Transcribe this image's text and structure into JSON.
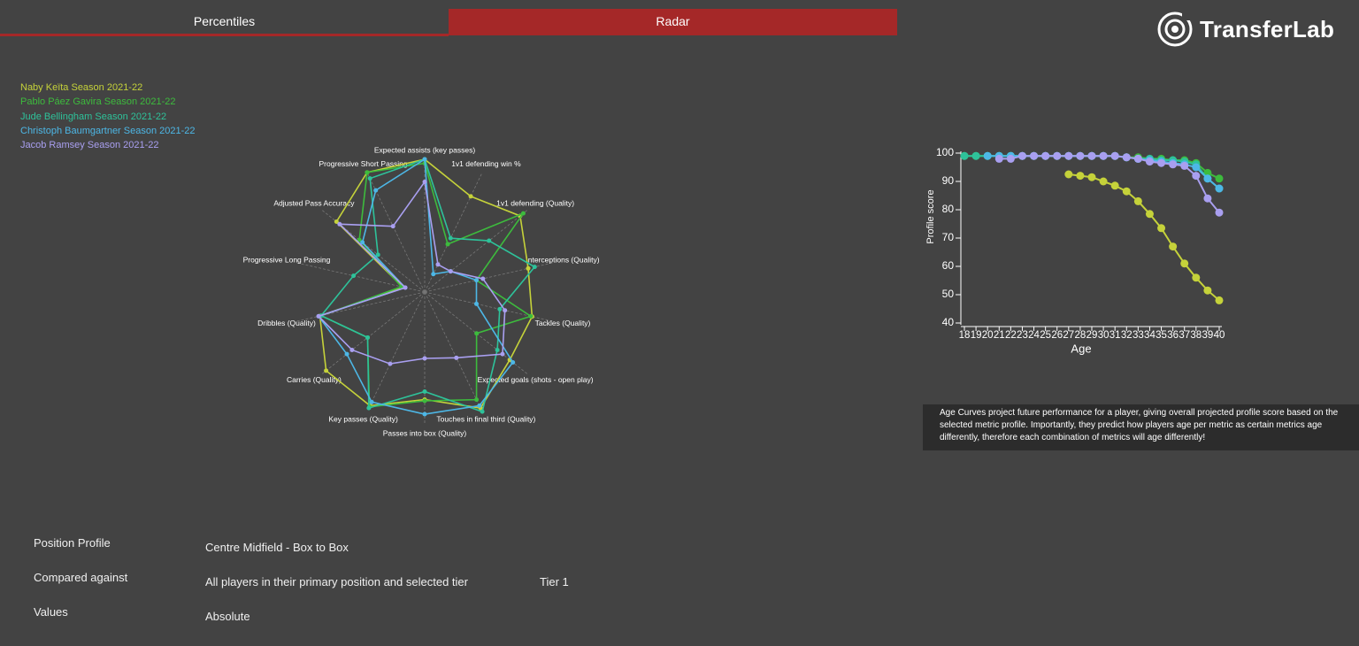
{
  "tabs": [
    "Percentiles",
    "Radar"
  ],
  "active_tab": 1,
  "logo": "TransferLab",
  "chart_data": [
    {
      "type": "radar",
      "categories": [
        "Expected assists (key passes)",
        "1v1 defending win %",
        "1v1 defending (Quality)",
        "Interceptions (Quality)",
        "Tackles (Quality)",
        "Expected goals (shots - open play)",
        "Touches in final third (Quality)",
        "Passes into box (Quality)",
        "Key passes (Quality)",
        "Carries (Quality)",
        "Dribbles (Quality)",
        "Progressive Long Passing",
        "Adjusted Pass Accuracy",
        "Progressive Short Passing"
      ],
      "rlim": [
        0,
        100
      ],
      "series": [
        {
          "name": "Naby Keïta Season 2021-22",
          "color": "#c5d23a",
          "values": [
            100,
            80,
            92,
            80,
            83,
            82,
            97,
            81,
            95,
            95,
            81,
            17,
            85,
            100
          ]
        },
        {
          "name": "Pablo Páez Gavira Season 2021-22",
          "color": "#3dbb3d",
          "values": [
            97,
            40,
            95,
            40,
            82,
            50,
            90,
            82,
            96,
            55,
            80,
            18,
            63,
            100
          ]
        },
        {
          "name": "Jude Bellingham Season 2021-22",
          "color": "#2ec29a",
          "values": [
            100,
            45,
            62,
            85,
            58,
            70,
            100,
            75,
            97,
            55,
            80,
            55,
            45,
            95
          ]
        },
        {
          "name": "Christoph Baumgartner Season 2021-22",
          "color": "#4db7e6",
          "values": [
            100,
            15,
            25,
            40,
            40,
            85,
            95,
            92,
            92,
            75,
            82,
            15,
            60,
            85
          ]
        },
        {
          "name": "Jacob Ramsey Season 2021-22",
          "color": "#a99ff0",
          "values": [
            83,
            23,
            25,
            45,
            62,
            75,
            55,
            50,
            60,
            70,
            82,
            15,
            82,
            55
          ]
        }
      ]
    },
    {
      "type": "line",
      "x_label": "Age",
      "y_label": "Profile score",
      "x": [
        18,
        19,
        20,
        21,
        22,
        23,
        24,
        25,
        26,
        27,
        28,
        29,
        30,
        31,
        32,
        33,
        34,
        35,
        36,
        37,
        38,
        39,
        40
      ],
      "xlim": [
        18,
        40
      ],
      "xticks": [
        18,
        19,
        20,
        21,
        22,
        23,
        24,
        25,
        26,
        27,
        28,
        29,
        30,
        31,
        32,
        33,
        34,
        35,
        36,
        37,
        38,
        39,
        40
      ],
      "ylim": [
        40,
        100
      ],
      "yticks": [
        40,
        50,
        60,
        70,
        80,
        90,
        100
      ],
      "series": [
        {
          "color": "#c5d23a",
          "values": [
            null,
            null,
            null,
            null,
            null,
            null,
            null,
            null,
            null,
            92.5,
            92,
            91.5,
            90,
            88.5,
            86.5,
            83,
            78.5,
            73.5,
            67,
            61,
            56,
            51.5,
            48
          ]
        },
        {
          "color": "#3dbb3d",
          "values": [
            99,
            99,
            99,
            99,
            99,
            99,
            99,
            99,
            99,
            99,
            99,
            99,
            99,
            99,
            98.5,
            98.5,
            98,
            98,
            97.5,
            97.5,
            96.5,
            93,
            91
          ]
        },
        {
          "color": "#2ec29a",
          "values": [
            99,
            99,
            99,
            99,
            99,
            99,
            99,
            99,
            99,
            99,
            99,
            99,
            99,
            99,
            98.5,
            98,
            98,
            97.5,
            97.5,
            97,
            96,
            91,
            87.5
          ]
        },
        {
          "color": "#4db7e6",
          "values": [
            null,
            null,
            99,
            99,
            99,
            99,
            99,
            99,
            99,
            99,
            99,
            99,
            99,
            99,
            98.5,
            98,
            97.5,
            97,
            96.5,
            96,
            95,
            91,
            87.5
          ]
        },
        {
          "color": "#a99ff0",
          "values": [
            null,
            null,
            null,
            98,
            98,
            99,
            99,
            99,
            99,
            99,
            99,
            99,
            99,
            99,
            98.5,
            98,
            97,
            96.5,
            96,
            95.5,
            92,
            84,
            79
          ]
        }
      ]
    }
  ],
  "note": "Age Curves project future performance for a player, giving overall projected profile score based on the selected metric profile. Importantly, they predict how players age per metric as certain metrics age differently, therefore each combination of metrics will age differently!",
  "profile": {
    "rows": [
      [
        "Position Profile",
        "Centre Midfield - Box to Box"
      ],
      [
        "Compared against",
        "All players in their primary position and selected tier",
        "Tier 1"
      ],
      [
        "Values",
        "Absolute"
      ]
    ]
  }
}
